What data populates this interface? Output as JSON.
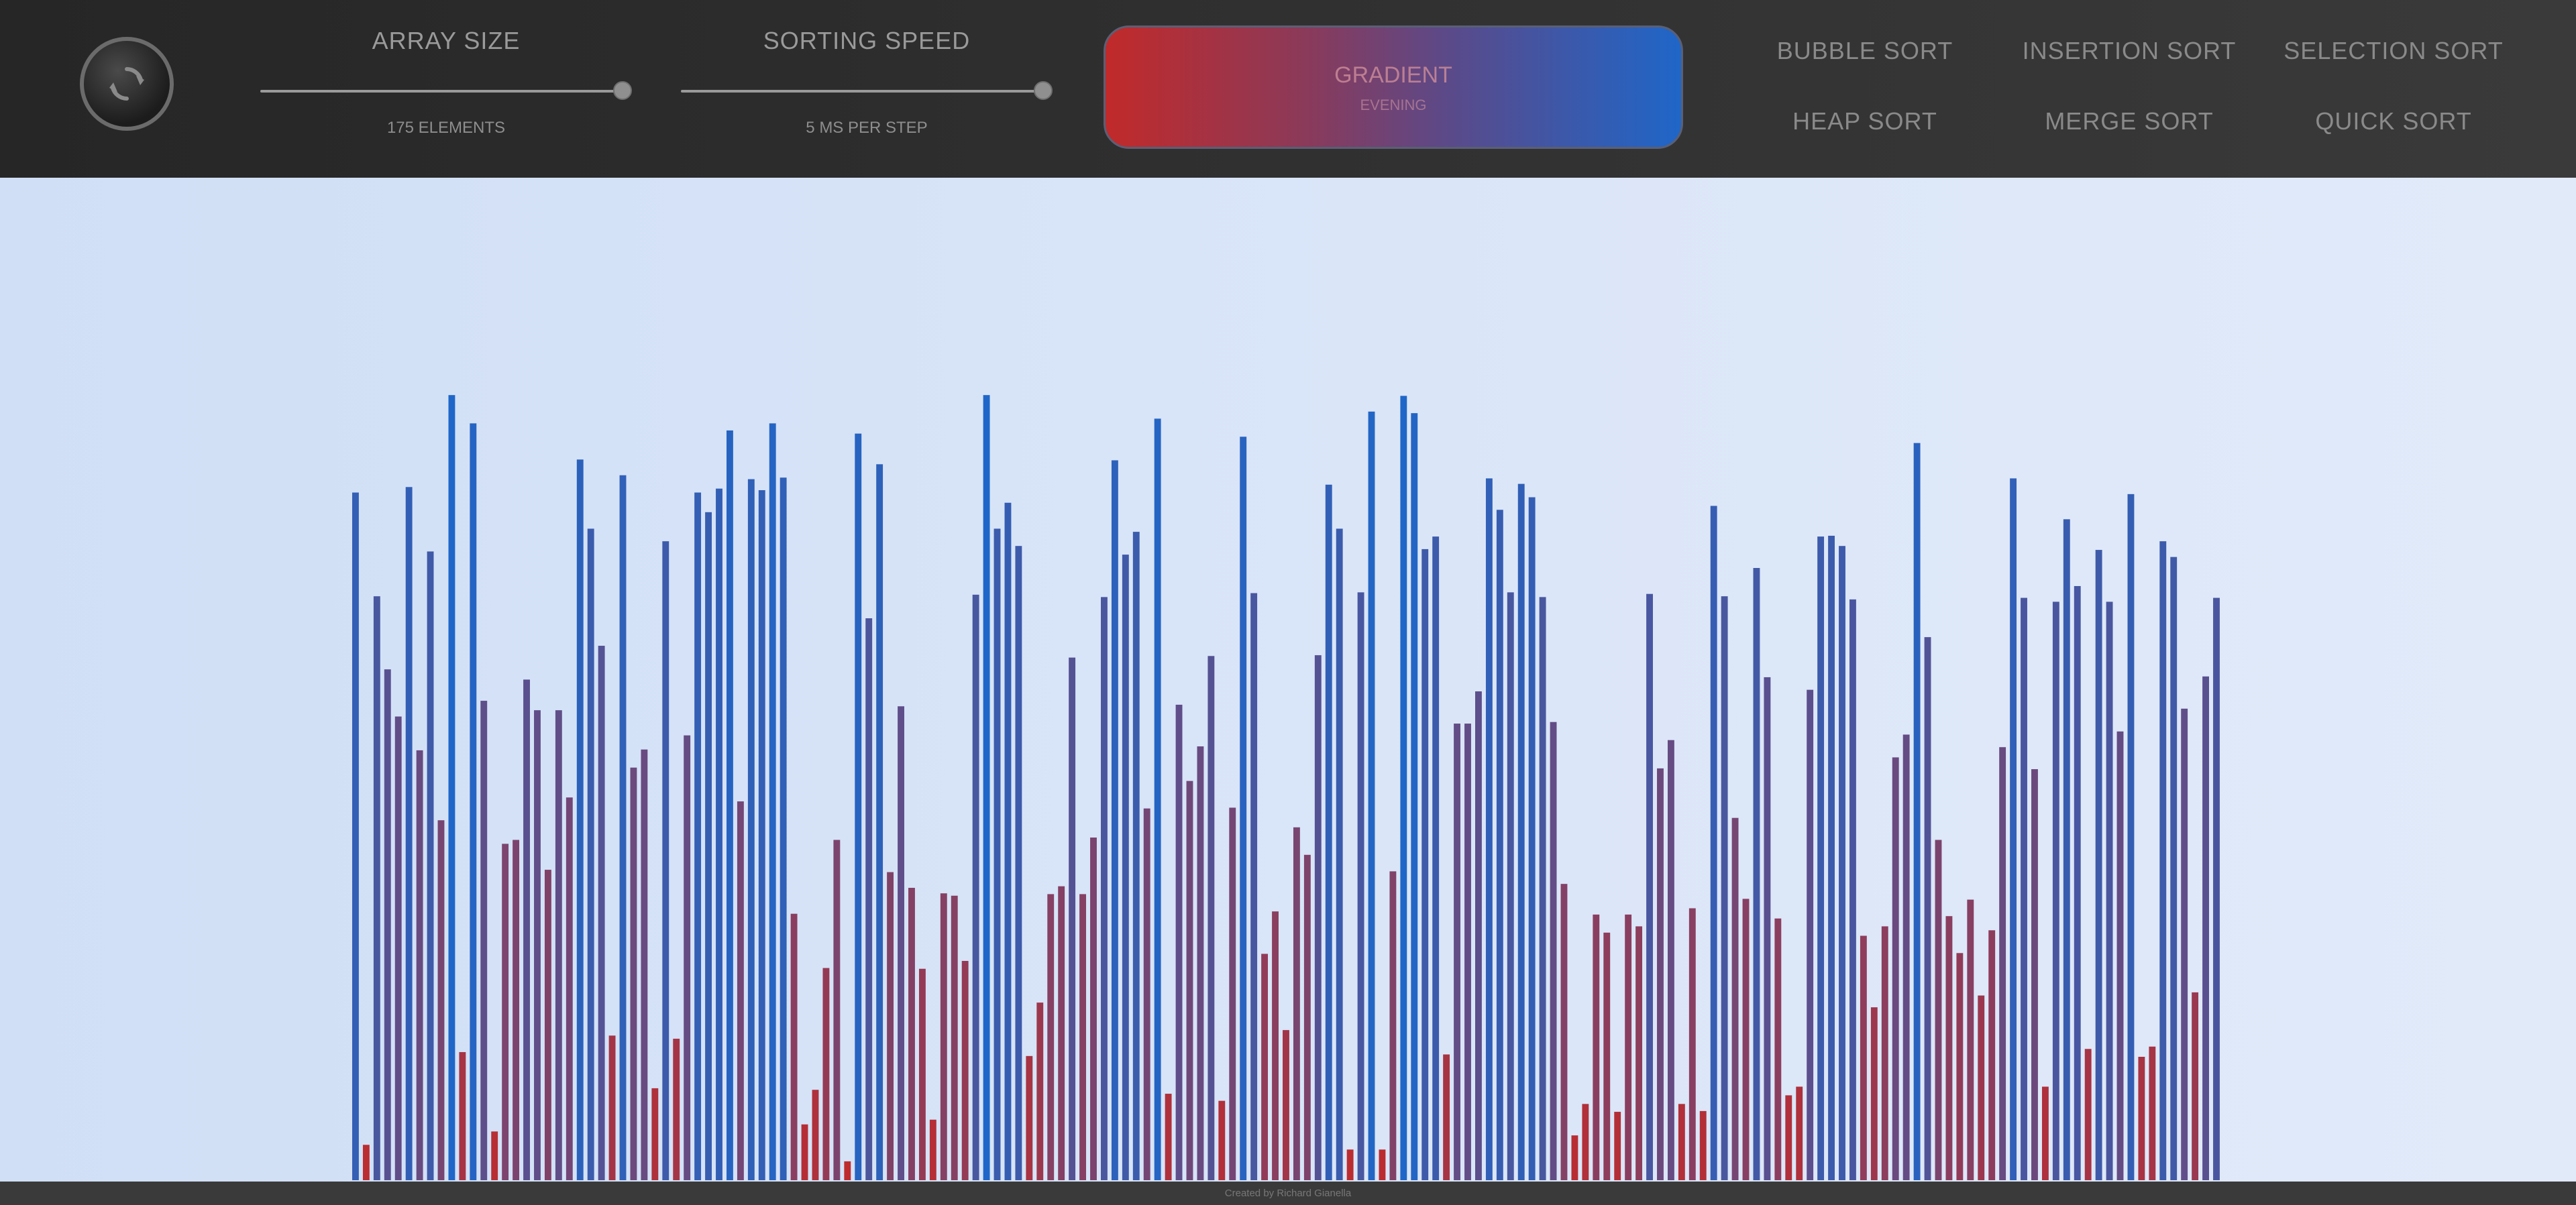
{
  "toolbar": {
    "reset_icon": "refresh-icon",
    "array_size": {
      "title": "ARRAY SIZE",
      "value_label": "175 ELEMENTS",
      "slider_level": 1.0
    },
    "sorting_speed": {
      "title": "SORTING SPEED",
      "value_label": "5 MS PER STEP",
      "slider_level": 1.0
    },
    "gradient": {
      "title": "GRADIENT",
      "name": "EVENING",
      "start_color": "#c12a2a",
      "end_color": "#1f66c8"
    },
    "algorithms": [
      "BUBBLE SORT",
      "INSERTION SORT",
      "SELECTION SORT",
      "HEAP SORT",
      "MERGE SORT",
      "QUICK SORT"
    ]
  },
  "array": {
    "max_value": 1000,
    "low_color": "#c12a2a",
    "high_color": "#1f66c8",
    "values": [
      875,
      45,
      743,
      650,
      590,
      882,
      547,
      800,
      458,
      999,
      163,
      963,
      610,
      62,
      428,
      433,
      637,
      598,
      395,
      598,
      487,
      917,
      829,
      680,
      184,
      897,
      525,
      548,
      117,
      813,
      180,
      566,
      875,
      850,
      880,
      954,
      482,
      892,
      878,
      963,
      894,
      339,
      71,
      115,
      270,
      433,
      24,
      950,
      715,
      911,
      392,
      603,
      372,
      269,
      77,
      365,
      362,
      279,
      745,
      999,
      829,
      862,
      807,
      158,
      226,
      364,
      374,
      665,
      364,
      436,
      742,
      916,
      796,
      825,
      473,
      969,
      110,
      605,
      508,
      552,
      667,
      101,
      474,
      946,
      747,
      288,
      342,
      191,
      449,
      414,
      668,
      885,
      829,
      39,
      748,
      978,
      39,
      393,
      998,
      976,
      803,
      819,
      160,
      581,
      581,
      622,
      893,
      853,
      748,
      886,
      869,
      742,
      583,
      377,
      57,
      97,
      338,
      315,
      87,
      338,
      323,
      746,
      524,
      560,
      97,
      346,
      88,
      858,
      743,
      461,
      358,
      779,
      640,
      333,
      108,
      119,
      624,
      819,
      820,
      807,
      739,
      311,
      220,
      323,
      538,
      567,
      938,
      691,
      433,
      336,
      289,
      357,
      235,
      318,
      551,
      893,
      741,
      523,
      119,
      736,
      841,
      756,
      167,
      802,
      736,
      571,
      873,
      157,
      170,
      813,
      793,
      600,
      239,
      641,
      741
    ]
  },
  "footer": {
    "credit": "Created by Richard Gianella"
  }
}
